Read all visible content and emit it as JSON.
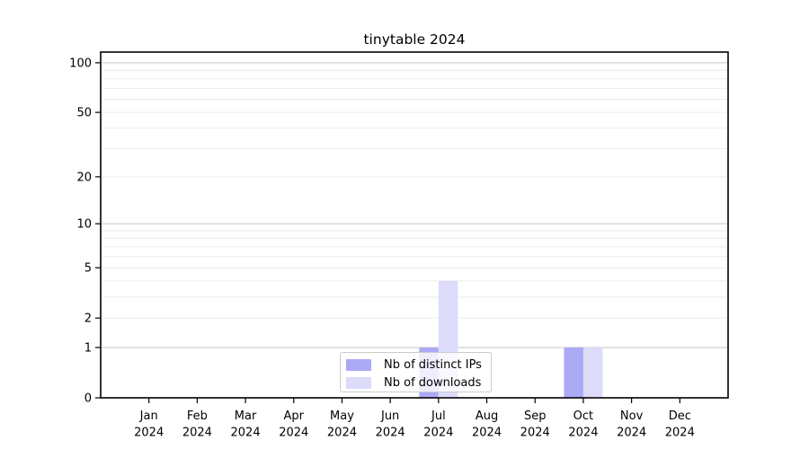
{
  "chart_data": {
    "type": "bar",
    "title": "tinytable 2024",
    "categories": [
      "Jan",
      "Feb",
      "Mar",
      "Apr",
      "May",
      "Jun",
      "Jul",
      "Aug",
      "Sep",
      "Oct",
      "Nov",
      "Dec"
    ],
    "x_tick_second_line": "2024",
    "series": [
      {
        "name": "Nb of distinct IPs",
        "color": "#aaaaf5",
        "values": [
          0,
          0,
          0,
          0,
          0,
          0,
          1,
          0,
          0,
          1,
          0,
          0
        ]
      },
      {
        "name": "Nb of downloads",
        "color": "#dcdbf9",
        "values": [
          0,
          0,
          0,
          0,
          0,
          0,
          4,
          0,
          0,
          1,
          0,
          0
        ]
      }
    ],
    "y_scale": "log1p",
    "ylim": [
      0,
      116
    ],
    "y_ticks": [
      0,
      1,
      2,
      5,
      10,
      20,
      50,
      100
    ],
    "grid_major": [
      1,
      10,
      100
    ],
    "grid_minor": [
      2,
      3,
      4,
      5,
      6,
      7,
      8,
      9,
      20,
      30,
      40,
      50,
      60,
      70,
      80,
      90
    ],
    "grid_on": true,
    "legend_position": "inside-bottom-center",
    "colors": {
      "grid_major": "#c6c6c6",
      "grid_minor": "#ebebeb",
      "axis": "#000000",
      "legend_border": "#cccccc"
    }
  }
}
